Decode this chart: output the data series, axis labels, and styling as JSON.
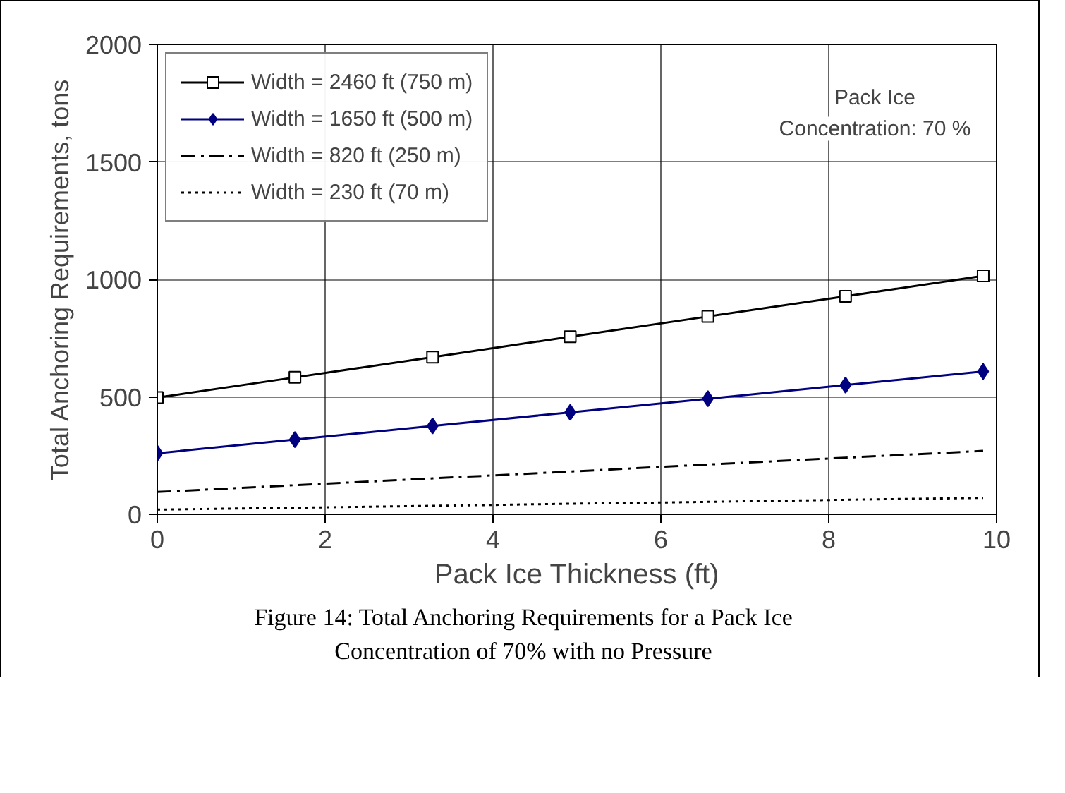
{
  "chart_data": {
    "type": "line",
    "title": "Figure 14: Total Anchoring Requirements for a Pack Ice Concentration of 70% with no Pressure",
    "xlabel": "Pack Ice Thickness (ft)",
    "ylabel": "Total Anchoring Requirements, tons",
    "x": [
      0,
      1.64,
      3.28,
      4.92,
      6.56,
      8.2,
      9.84
    ],
    "series": [
      {
        "name": "Width = 2460 ft (750 m)",
        "color": "#000000",
        "marker": "square",
        "line_style": "solid",
        "values": [
          497,
          583,
          669,
          756,
          842,
          928,
          1015
        ]
      },
      {
        "name": "Width = 1650 ft (500 m)",
        "color": "#000080",
        "marker": "diamond",
        "line_style": "solid",
        "values": [
          260,
          318,
          376,
          434,
          492,
          550,
          608
        ]
      },
      {
        "name": "Width = 820 ft (250 m)",
        "color": "#000000",
        "marker": "none",
        "line_style": "dashdot",
        "values": [
          95,
          124,
          153,
          182,
          212,
          241,
          270
        ]
      },
      {
        "name": "Width = 230 ft (70 m)",
        "color": "#000000",
        "marker": "none",
        "line_style": "dotted",
        "values": [
          20,
          28,
          36,
          45,
          53,
          62,
          70
        ]
      }
    ],
    "xlim": [
      0,
      10
    ],
    "xticks": [
      0,
      2,
      4,
      6,
      8,
      10
    ],
    "ylim": [
      0,
      2000
    ],
    "yticks": [
      0,
      500,
      1000,
      1500,
      2000
    ],
    "grid": true,
    "legend": "top left",
    "annotations": [
      "Pack Ice\nConcentration: 70 %"
    ]
  }
}
